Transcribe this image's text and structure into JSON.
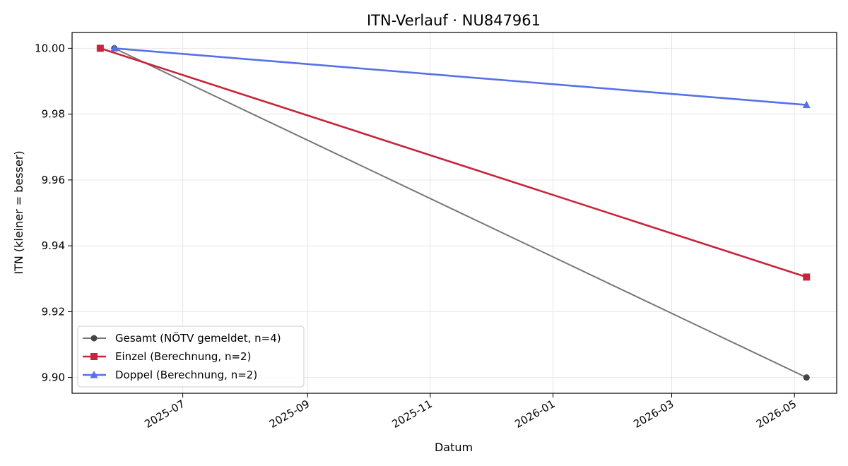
{
  "chart_data": {
    "type": "line",
    "title": "ITN-Verlauf · NU847961",
    "xlabel": "Datum",
    "ylabel": "ITN  (kleiner = besser)",
    "x_axis": {
      "scale": "date",
      "range": [
        "2025-05-07",
        "2026-05-22"
      ],
      "ticks": [
        "2025-07",
        "2025-09",
        "2025-11",
        "2026-01",
        "2026-03",
        "2026-05"
      ]
    },
    "y_axis": {
      "range": [
        9.8952,
        10.0048
      ],
      "ticks": [
        "9.90",
        "9.92",
        "9.94",
        "9.96",
        "9.98",
        "10.00"
      ]
    },
    "grid": true,
    "legend_position": "lower-left",
    "series": [
      {
        "name": "Gesamt (NÖTV gemeldet, n=4)",
        "color": "#777777",
        "marker_color": "#444444",
        "marker": "circle",
        "points": [
          {
            "x": "2025-05-28",
            "y": 10.0
          },
          {
            "x": "2026-05-07",
            "y": 9.9
          }
        ]
      },
      {
        "name": "Einzel (Berechnung, n=2)",
        "color": "#c8243c",
        "marker_color": "#c8243c",
        "marker": "square",
        "points": [
          {
            "x": "2025-05-21",
            "y": 10.0
          },
          {
            "x": "2026-05-07",
            "y": 9.9305
          }
        ]
      },
      {
        "name": "Doppel (Berechnung, n=2)",
        "color": "#5571e8",
        "marker_color": "#5571e8",
        "marker": "triangle",
        "points": [
          {
            "x": "2025-05-28",
            "y": 10.0
          },
          {
            "x": "2026-05-07",
            "y": 9.9828
          }
        ]
      }
    ]
  }
}
